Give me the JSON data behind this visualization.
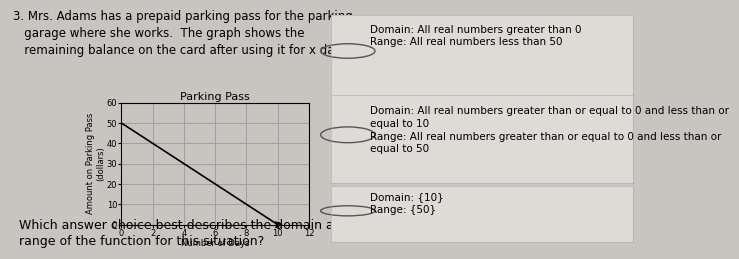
{
  "title": "Parking Pass",
  "xlabel": "Number of Days",
  "ylabel": "Amount on Parking Pass\n(dollars)",
  "line_x": [
    0,
    10
  ],
  "line_y": [
    50,
    0
  ],
  "xlim": [
    0,
    12
  ],
  "ylim": [
    0,
    60
  ],
  "xticks": [
    0,
    2,
    4,
    6,
    8,
    10,
    12
  ],
  "yticks": [
    0,
    10,
    20,
    30,
    40,
    50,
    60
  ],
  "line_color": "#000000",
  "grid_color": "#999999",
  "bg_color": "#c8c5c0",
  "fig_bg": "#c8c5c0",
  "choice_bg": "#dedad5",
  "problem_text": "3. Mrs. Adams has a prepaid parking pass for the parking\n   garage where she works.  The graph shows the\n   remaining balance on the card after using it for x days.",
  "question_text": "Which answer choice best describes the domain and\nrange of the function for this situation?",
  "choice1_line1": "Domain: All real numbers greater than 0",
  "choice1_line2": "Range: All real numbers less than 50",
  "choice2_line1": "Domain: All real numbers greater than or equal to 0 and less than or",
  "choice2_line2": "equal to 10",
  "choice2_line3": "Range: All real numbers greater than or equal to 0 and less than or",
  "choice2_line4": "equal to 50",
  "choice3_line1": "Domain: {10}",
  "choice3_line2": "Range: {50}",
  "title_fontsize": 8,
  "label_fontsize": 6,
  "tick_fontsize": 6,
  "problem_fontsize": 8.5,
  "answer_fontsize": 7.5,
  "question_fontsize": 9
}
